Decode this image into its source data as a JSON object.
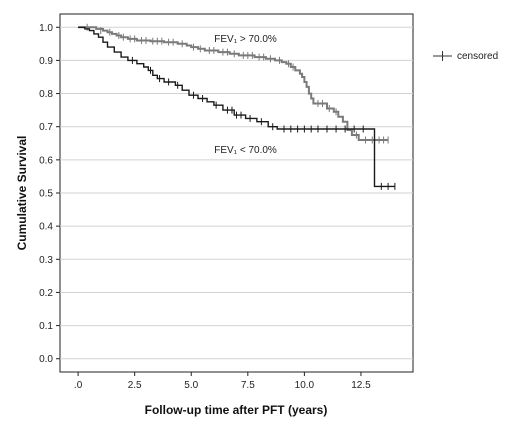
{
  "chart_data": {
    "type": "line",
    "title": "",
    "xlabel": "Follow-up time after PFT (years)",
    "ylabel": "Cumulative Survival",
    "xlim": [
      -0.8,
      14.8
    ],
    "ylim": [
      -0.04,
      1.04
    ],
    "xticks": [
      0,
      2.5,
      5,
      7.5,
      10,
      12.5
    ],
    "xtick_labels": [
      ".0",
      "2.5",
      "5.0",
      "7.5",
      "10.0",
      "12.5"
    ],
    "yticks": [
      0,
      0.1,
      0.2,
      0.3,
      0.4,
      0.5,
      0.6,
      0.7,
      0.8,
      0.9,
      1.0
    ],
    "ytick_labels": [
      "0.0",
      "0.1",
      "0.2",
      "0.3",
      "0.4",
      "0.5",
      "0.6",
      "0.7",
      "0.8",
      "0.9",
      "1.0"
    ],
    "grid": "horizontal",
    "legend": {
      "position": "right",
      "entries": [
        "censored"
      ]
    },
    "annotations": [
      {
        "text": "FEV₁ > 70.0%",
        "x": 7.4,
        "y": 0.955
      },
      {
        "text": "FEV₁ < 70.0%",
        "x": 7.4,
        "y": 0.62
      }
    ],
    "series": [
      {
        "color": "#7a7a7a",
        "steps": [
          [
            0,
            1.0
          ],
          [
            0.8,
            0.995
          ],
          [
            1.1,
            0.99
          ],
          [
            1.3,
            0.985
          ],
          [
            1.5,
            0.98
          ],
          [
            1.7,
            0.975
          ],
          [
            1.9,
            0.97
          ],
          [
            2.2,
            0.965
          ],
          [
            2.6,
            0.96
          ],
          [
            3.2,
            0.958
          ],
          [
            3.8,
            0.955
          ],
          [
            4.4,
            0.95
          ],
          [
            4.8,
            0.945
          ],
          [
            5.0,
            0.94
          ],
          [
            5.3,
            0.935
          ],
          [
            5.6,
            0.93
          ],
          [
            6.2,
            0.925
          ],
          [
            6.7,
            0.92
          ],
          [
            7.1,
            0.915
          ],
          [
            7.8,
            0.91
          ],
          [
            8.3,
            0.905
          ],
          [
            8.7,
            0.9
          ],
          [
            9.0,
            0.895
          ],
          [
            9.2,
            0.89
          ],
          [
            9.4,
            0.88
          ],
          [
            9.6,
            0.87
          ],
          [
            9.8,
            0.86
          ],
          [
            9.9,
            0.85
          ],
          [
            10.0,
            0.835
          ],
          [
            10.1,
            0.82
          ],
          [
            10.2,
            0.8
          ],
          [
            10.3,
            0.785
          ],
          [
            10.4,
            0.77
          ],
          [
            11.0,
            0.755
          ],
          [
            11.3,
            0.745
          ],
          [
            11.5,
            0.73
          ],
          [
            11.7,
            0.715
          ],
          [
            11.9,
            0.69
          ],
          [
            12.1,
            0.675
          ],
          [
            12.4,
            0.66
          ],
          [
            13.7,
            0.66
          ]
        ],
        "censored": [
          [
            0.4,
            1.0
          ],
          [
            1.0,
            0.99
          ],
          [
            1.4,
            0.985
          ],
          [
            1.8,
            0.975
          ],
          [
            2.0,
            0.97
          ],
          [
            2.3,
            0.965
          ],
          [
            2.5,
            0.965
          ],
          [
            2.8,
            0.96
          ],
          [
            3.0,
            0.96
          ],
          [
            3.3,
            0.958
          ],
          [
            3.5,
            0.958
          ],
          [
            3.7,
            0.958
          ],
          [
            4.0,
            0.955
          ],
          [
            4.2,
            0.955
          ],
          [
            4.6,
            0.95
          ],
          [
            5.1,
            0.94
          ],
          [
            5.4,
            0.935
          ],
          [
            5.8,
            0.93
          ],
          [
            6.0,
            0.93
          ],
          [
            6.4,
            0.925
          ],
          [
            6.6,
            0.925
          ],
          [
            6.9,
            0.92
          ],
          [
            7.3,
            0.915
          ],
          [
            7.5,
            0.915
          ],
          [
            7.7,
            0.915
          ],
          [
            8.0,
            0.91
          ],
          [
            8.2,
            0.91
          ],
          [
            8.5,
            0.905
          ],
          [
            8.9,
            0.9
          ],
          [
            9.3,
            0.89
          ],
          [
            9.5,
            0.88
          ],
          [
            10.6,
            0.77
          ],
          [
            10.8,
            0.77
          ],
          [
            11.1,
            0.755
          ],
          [
            11.4,
            0.745
          ],
          [
            12.3,
            0.675
          ],
          [
            12.7,
            0.66
          ],
          [
            13.0,
            0.66
          ],
          [
            13.3,
            0.66
          ],
          [
            13.5,
            0.66
          ],
          [
            13.7,
            0.66
          ]
        ]
      },
      {
        "color": "#1a1a1a",
        "steps": [
          [
            0,
            1.0
          ],
          [
            0.3,
            0.995
          ],
          [
            0.5,
            0.99
          ],
          [
            0.7,
            0.98
          ],
          [
            0.9,
            0.97
          ],
          [
            1.1,
            0.955
          ],
          [
            1.3,
            0.94
          ],
          [
            1.6,
            0.925
          ],
          [
            1.9,
            0.91
          ],
          [
            2.2,
            0.9
          ],
          [
            2.6,
            0.89
          ],
          [
            2.9,
            0.88
          ],
          [
            3.1,
            0.87
          ],
          [
            3.3,
            0.855
          ],
          [
            3.5,
            0.845
          ],
          [
            3.8,
            0.835
          ],
          [
            4.3,
            0.825
          ],
          [
            4.6,
            0.81
          ],
          [
            4.9,
            0.795
          ],
          [
            5.3,
            0.785
          ],
          [
            5.7,
            0.775
          ],
          [
            6.0,
            0.765
          ],
          [
            6.4,
            0.75
          ],
          [
            6.9,
            0.735
          ],
          [
            7.4,
            0.725
          ],
          [
            7.9,
            0.715
          ],
          [
            8.4,
            0.7
          ],
          [
            8.8,
            0.693
          ],
          [
            13.1,
            0.52
          ],
          [
            14.0,
            0.52
          ]
        ],
        "censored": [
          [
            2.4,
            0.9
          ],
          [
            3.2,
            0.87
          ],
          [
            3.6,
            0.845
          ],
          [
            4.0,
            0.835
          ],
          [
            4.4,
            0.825
          ],
          [
            5.1,
            0.795
          ],
          [
            5.5,
            0.785
          ],
          [
            6.1,
            0.765
          ],
          [
            6.6,
            0.75
          ],
          [
            6.8,
            0.75
          ],
          [
            7.0,
            0.735
          ],
          [
            7.2,
            0.735
          ],
          [
            7.6,
            0.725
          ],
          [
            8.1,
            0.715
          ],
          [
            8.6,
            0.7
          ],
          [
            9.1,
            0.693
          ],
          [
            9.4,
            0.693
          ],
          [
            9.7,
            0.693
          ],
          [
            10.0,
            0.693
          ],
          [
            10.3,
            0.693
          ],
          [
            10.6,
            0.693
          ],
          [
            11.0,
            0.693
          ],
          [
            11.4,
            0.693
          ],
          [
            11.8,
            0.693
          ],
          [
            12.2,
            0.693
          ],
          [
            12.6,
            0.693
          ],
          [
            13.4,
            0.52
          ],
          [
            13.7,
            0.52
          ],
          [
            14.0,
            0.52
          ]
        ]
      }
    ]
  }
}
